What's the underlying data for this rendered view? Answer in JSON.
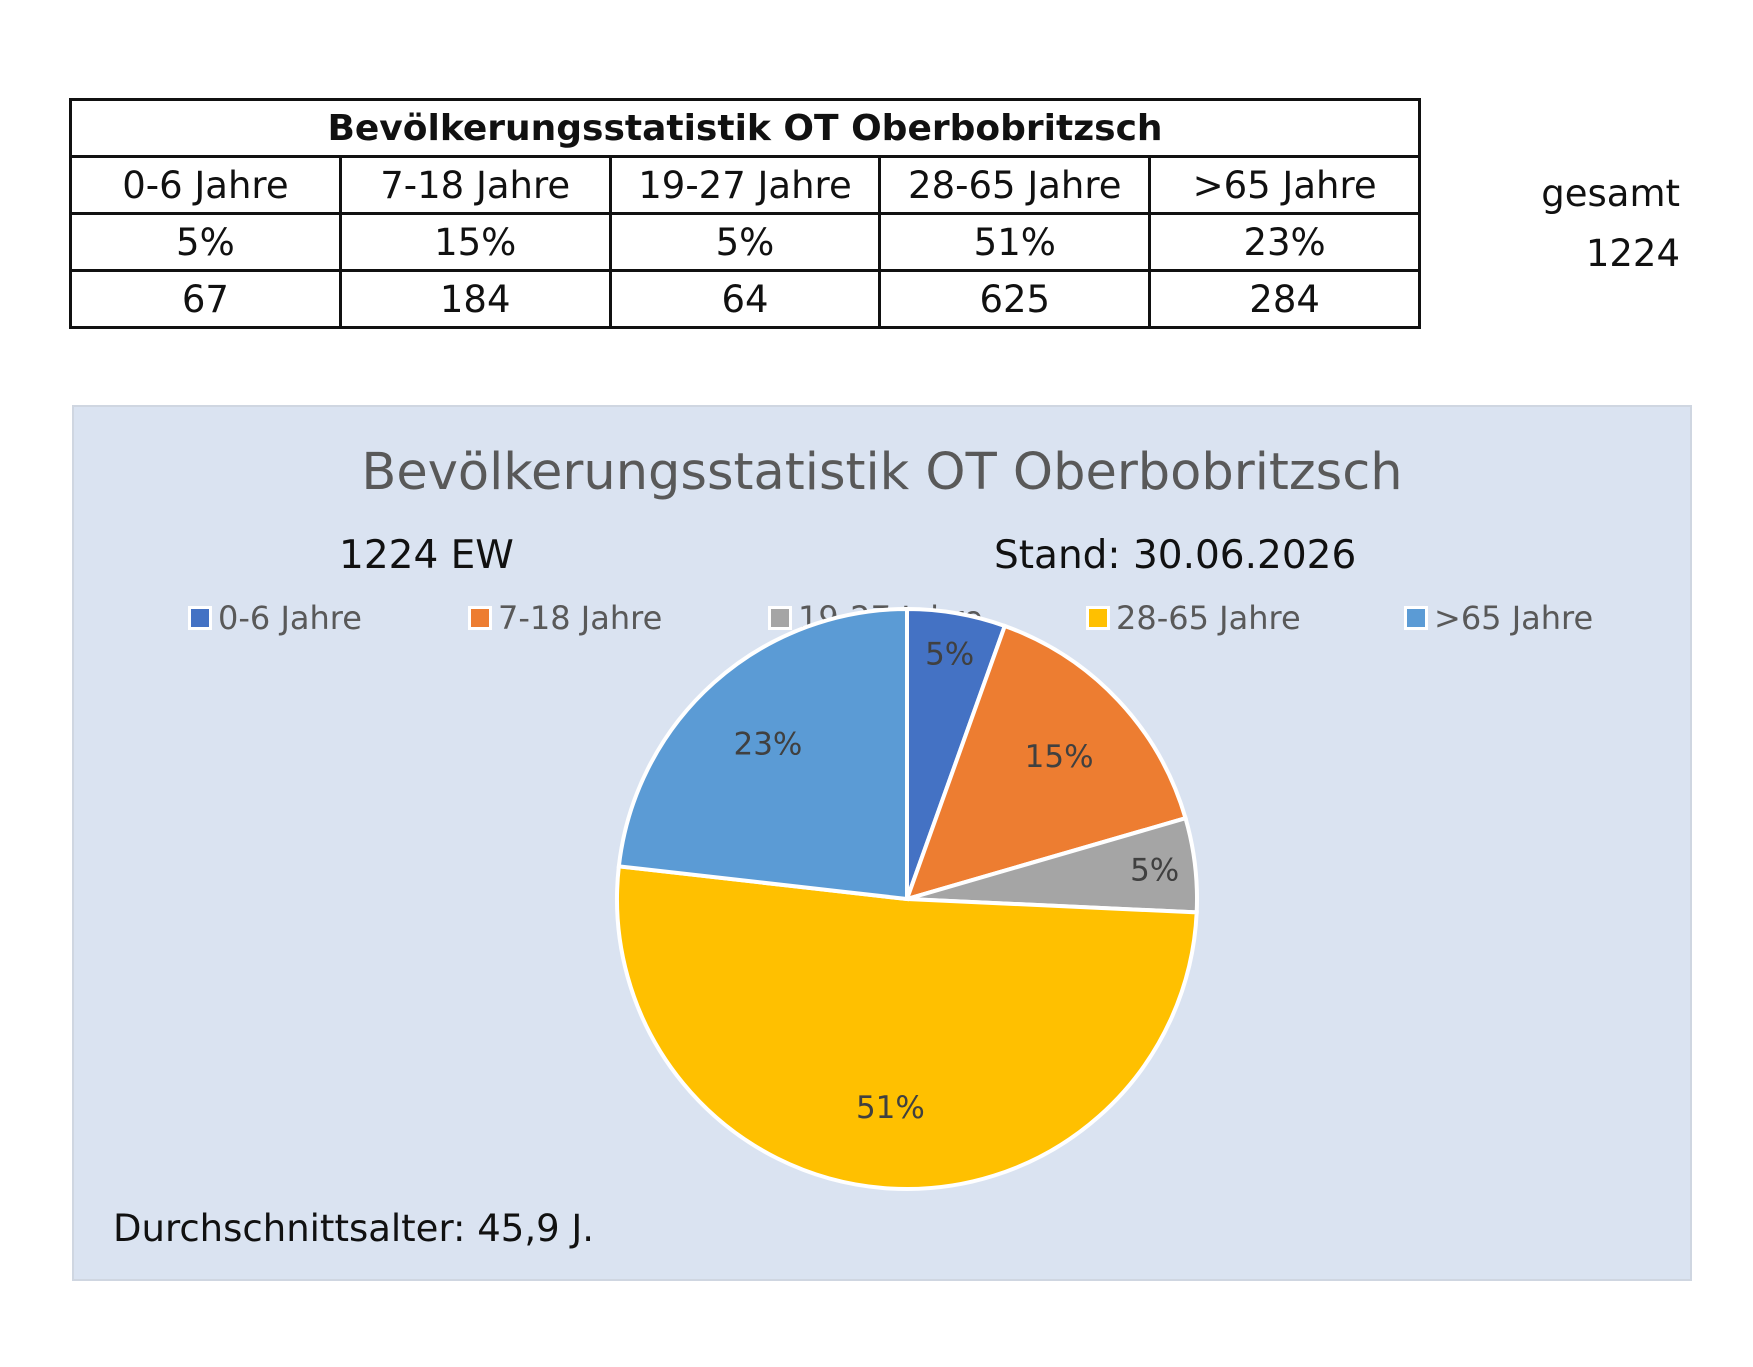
{
  "table": {
    "title": "Bevölkerungsstatistik OT Oberbobritzsch",
    "headers": [
      "0-6 Jahre",
      "7-18 Jahre",
      "19-27 Jahre",
      "28-65 Jahre",
      ">65 Jahre"
    ],
    "percent_row": [
      "5%",
      "15%",
      "5%",
      "51%",
      "23%"
    ],
    "count_row": [
      "67",
      "184",
      "64",
      "625",
      "284"
    ],
    "total_label": "gesamt",
    "total_value": "1224"
  },
  "chart_data": {
    "type": "pie",
    "title": "Bevölkerungsstatistik OT Oberbobritzsch",
    "subtitle_left": "1224 EW",
    "subtitle_right": "Stand: 30.06.2026",
    "footer": "Durchschnittsalter: 45,9 J.",
    "legend_position": "top",
    "categories": [
      "0-6 Jahre",
      "7-18 Jahre",
      "19-27 Jahre",
      "28-65 Jahre",
      ">65 Jahre"
    ],
    "values": [
      67,
      184,
      64,
      625,
      284
    ],
    "labels": [
      "5%",
      "15%",
      "5%",
      "51%",
      "23%"
    ],
    "colors": [
      "#4472c4",
      "#ed7d31",
      "#a5a5a5",
      "#ffc000",
      "#5b9bd5"
    ]
  }
}
